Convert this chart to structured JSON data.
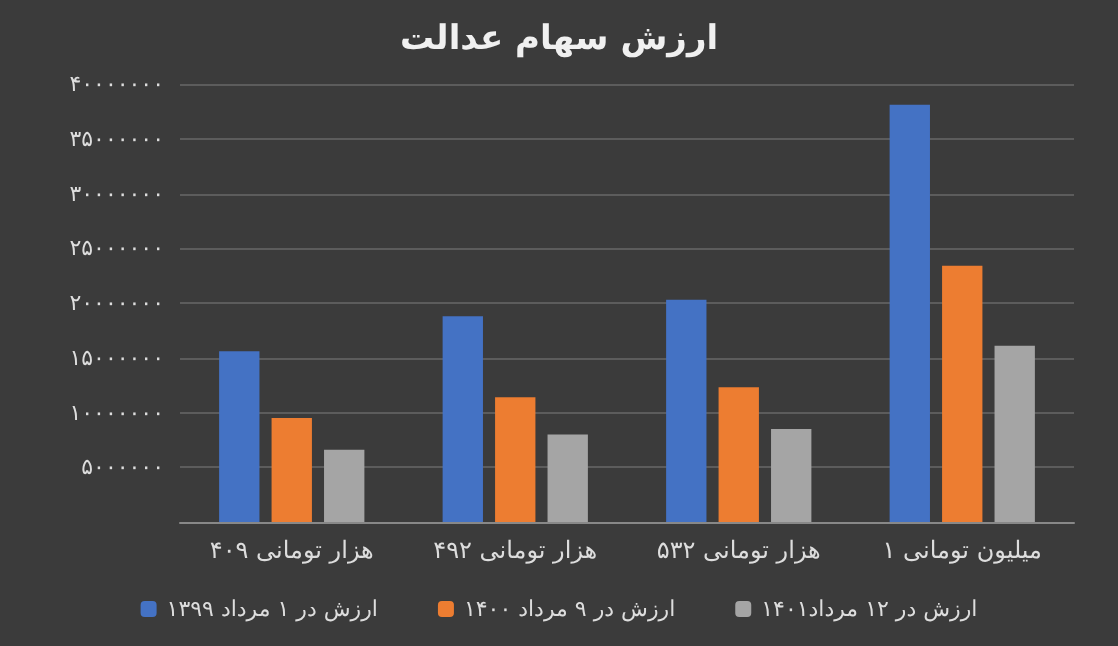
{
  "chart_data": {
    "type": "bar",
    "title": "ارزش سهام عدالت",
    "categories": [
      "۴۰۹ هزار تومانی",
      "۴۹۲ هزار تومانی",
      "۵۳۲ هزار تومانی",
      "۱ میلیون تومانی"
    ],
    "series": [
      {
        "name": "ارزش در ۱ مرداد ۱۳۹۹",
        "color": "#4472c4",
        "values": [
          15600000,
          18800000,
          20300000,
          38100000
        ]
      },
      {
        "name": "ارزش در ۹ مرداد ۱۴۰۰",
        "color": "#ed7d31",
        "values": [
          9500000,
          11400000,
          12300000,
          23400000
        ]
      },
      {
        "name": "ارزش در ۱۲ مرداد۱۴۰۱",
        "color": "#a5a5a5",
        "values": [
          6600000,
          8000000,
          8500000,
          16100000
        ]
      }
    ],
    "ylim": [
      0,
      40000000
    ],
    "yticks": [
      {
        "value": 5000000,
        "label": "۵۰۰۰۰۰۰"
      },
      {
        "value": 10000000,
        "label": "۱۰۰۰۰۰۰۰"
      },
      {
        "value": 15000000,
        "label": "۱۵۰۰۰۰۰۰"
      },
      {
        "value": 20000000,
        "label": "۲۰۰۰۰۰۰۰"
      },
      {
        "value": 25000000,
        "label": "۲۵۰۰۰۰۰۰"
      },
      {
        "value": 30000000,
        "label": "۳۰۰۰۰۰۰۰"
      },
      {
        "value": 35000000,
        "label": "۳۵۰۰۰۰۰۰"
      },
      {
        "value": 40000000,
        "label": "۴۰۰۰۰۰۰۰"
      }
    ],
    "grid": true,
    "legend": "bottom"
  }
}
